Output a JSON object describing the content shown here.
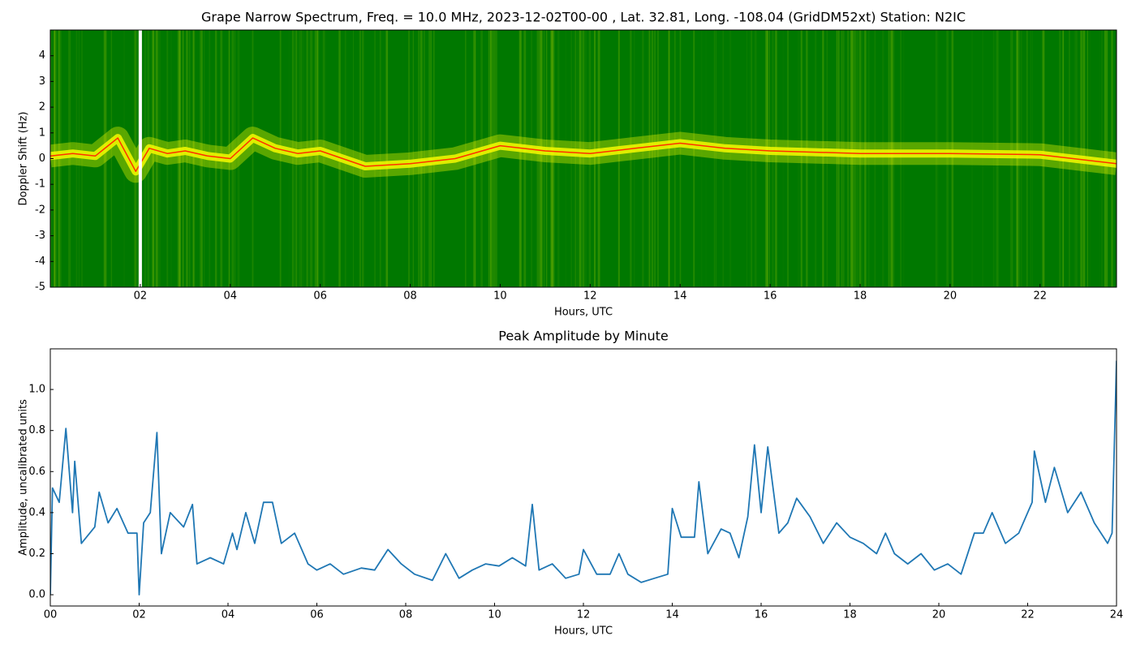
{
  "chart_data": [
    {
      "type": "spectrogram",
      "title": "Grape Narrow Spectrum, Freq. = 10.0 MHz, 2023-12-02T00-00 , Lat.  32.81, Long. -108.04 (GridDM52xt) Station: N2IC",
      "xlabel": "Hours, UTC",
      "ylabel": "Doppler Shift (Hz)",
      "x": [
        0,
        0.5,
        1,
        1.5,
        1.9,
        2.2,
        2.6,
        3,
        3.5,
        4,
        4.5,
        5,
        5.5,
        6,
        7,
        8,
        9,
        10,
        11,
        12,
        13,
        14,
        15,
        16,
        18,
        20,
        22,
        23.7
      ],
      "values": [
        0.1,
        0.2,
        0.1,
        0.8,
        -0.5,
        0.4,
        0.2,
        0.3,
        0.1,
        0.0,
        0.8,
        0.4,
        0.2,
        0.3,
        -0.3,
        -0.2,
        0.0,
        0.5,
        0.3,
        0.2,
        0.4,
        0.6,
        0.4,
        0.3,
        0.2,
        0.2,
        0.15,
        -0.2
      ],
      "colormap": [
        "#007800",
        "#ffff00",
        "#ff3000"
      ],
      "xlim": [
        0,
        23.7
      ],
      "ylim": [
        -5,
        5
      ],
      "xticks": [
        {
          "value": 2,
          "label": "02"
        },
        {
          "value": 4,
          "label": "04"
        },
        {
          "value": 6,
          "label": "06"
        },
        {
          "value": 8,
          "label": "08"
        },
        {
          "value": 10,
          "label": "10"
        },
        {
          "value": 12,
          "label": "12"
        },
        {
          "value": 14,
          "label": "14"
        },
        {
          "value": 16,
          "label": "16"
        },
        {
          "value": 18,
          "label": "18"
        },
        {
          "value": 20,
          "label": "20"
        },
        {
          "value": 22,
          "label": "22"
        }
      ],
      "yticks": [
        -5,
        -4,
        -3,
        -2,
        -1,
        0,
        1,
        2,
        3,
        4
      ]
    },
    {
      "type": "line",
      "title": "Peak Amplitude by Minute",
      "xlabel": "Hours, UTC",
      "ylabel": "Amplitude, uncalibrated units",
      "color": "#1f77b4",
      "x": [
        0,
        0.05,
        0.2,
        0.35,
        0.5,
        0.55,
        0.7,
        1.0,
        1.1,
        1.3,
        1.5,
        1.75,
        1.95,
        2.0,
        2.1,
        2.25,
        2.4,
        2.5,
        2.7,
        3.0,
        3.2,
        3.3,
        3.6,
        3.9,
        4.1,
        4.2,
        4.4,
        4.6,
        4.8,
        5.0,
        5.2,
        5.5,
        5.8,
        6.0,
        6.3,
        6.6,
        7.0,
        7.3,
        7.6,
        7.9,
        8.2,
        8.6,
        8.9,
        9.2,
        9.5,
        9.8,
        10.1,
        10.4,
        10.7,
        10.85,
        11.0,
        11.3,
        11.6,
        11.9,
        12.0,
        12.3,
        12.6,
        12.8,
        13.0,
        13.3,
        13.6,
        13.9,
        14.0,
        14.2,
        14.5,
        14.6,
        14.8,
        15.1,
        15.3,
        15.5,
        15.7,
        15.85,
        16.0,
        16.15,
        16.4,
        16.6,
        16.8,
        17.1,
        17.4,
        17.7,
        18.0,
        18.3,
        18.6,
        18.8,
        19.0,
        19.3,
        19.6,
        19.9,
        20.2,
        20.5,
        20.8,
        21.0,
        21.2,
        21.5,
        21.8,
        22.1,
        22.15,
        22.4,
        22.6,
        22.9,
        23.2,
        23.5,
        23.8,
        23.9,
        24.0
      ],
      "values": [
        0.0,
        0.52,
        0.45,
        0.81,
        0.4,
        0.65,
        0.25,
        0.33,
        0.5,
        0.35,
        0.42,
        0.3,
        0.3,
        0.0,
        0.35,
        0.4,
        0.79,
        0.2,
        0.4,
        0.33,
        0.44,
        0.15,
        0.18,
        0.15,
        0.3,
        0.22,
        0.4,
        0.25,
        0.45,
        0.45,
        0.25,
        0.3,
        0.15,
        0.12,
        0.15,
        0.1,
        0.13,
        0.12,
        0.22,
        0.15,
        0.1,
        0.07,
        0.2,
        0.08,
        0.12,
        0.15,
        0.14,
        0.18,
        0.14,
        0.44,
        0.12,
        0.15,
        0.08,
        0.1,
        0.22,
        0.1,
        0.1,
        0.2,
        0.1,
        0.06,
        0.08,
        0.1,
        0.42,
        0.28,
        0.28,
        0.55,
        0.2,
        0.32,
        0.3,
        0.18,
        0.38,
        0.73,
        0.4,
        0.72,
        0.3,
        0.35,
        0.47,
        0.38,
        0.25,
        0.35,
        0.28,
        0.25,
        0.2,
        0.3,
        0.2,
        0.15,
        0.2,
        0.12,
        0.15,
        0.1,
        0.3,
        0.3,
        0.4,
        0.25,
        0.3,
        0.45,
        0.7,
        0.45,
        0.62,
        0.4,
        0.5,
        0.35,
        0.25,
        0.3,
        1.14
      ],
      "xlim": [
        0,
        24
      ],
      "ylim": [
        -0.055,
        1.198
      ],
      "xticks": [
        {
          "value": 0,
          "label": "00"
        },
        {
          "value": 2,
          "label": "02"
        },
        {
          "value": 4,
          "label": "04"
        },
        {
          "value": 6,
          "label": "06"
        },
        {
          "value": 8,
          "label": "08"
        },
        {
          "value": 10,
          "label": "10"
        },
        {
          "value": 12,
          "label": "12"
        },
        {
          "value": 14,
          "label": "14"
        },
        {
          "value": 16,
          "label": "16"
        },
        {
          "value": 18,
          "label": "18"
        },
        {
          "value": 20,
          "label": "20"
        },
        {
          "value": 22,
          "label": "22"
        },
        {
          "value": 24,
          "label": "24"
        }
      ],
      "yticks": [
        {
          "value": 0,
          "label": "0.0"
        },
        {
          "value": 0.2,
          "label": "0.2"
        },
        {
          "value": 0.4,
          "label": "0.4"
        },
        {
          "value": 0.6,
          "label": "0.6"
        },
        {
          "value": 0.8,
          "label": "0.8"
        },
        {
          "value": 1.0,
          "label": "1.0"
        }
      ]
    }
  ]
}
